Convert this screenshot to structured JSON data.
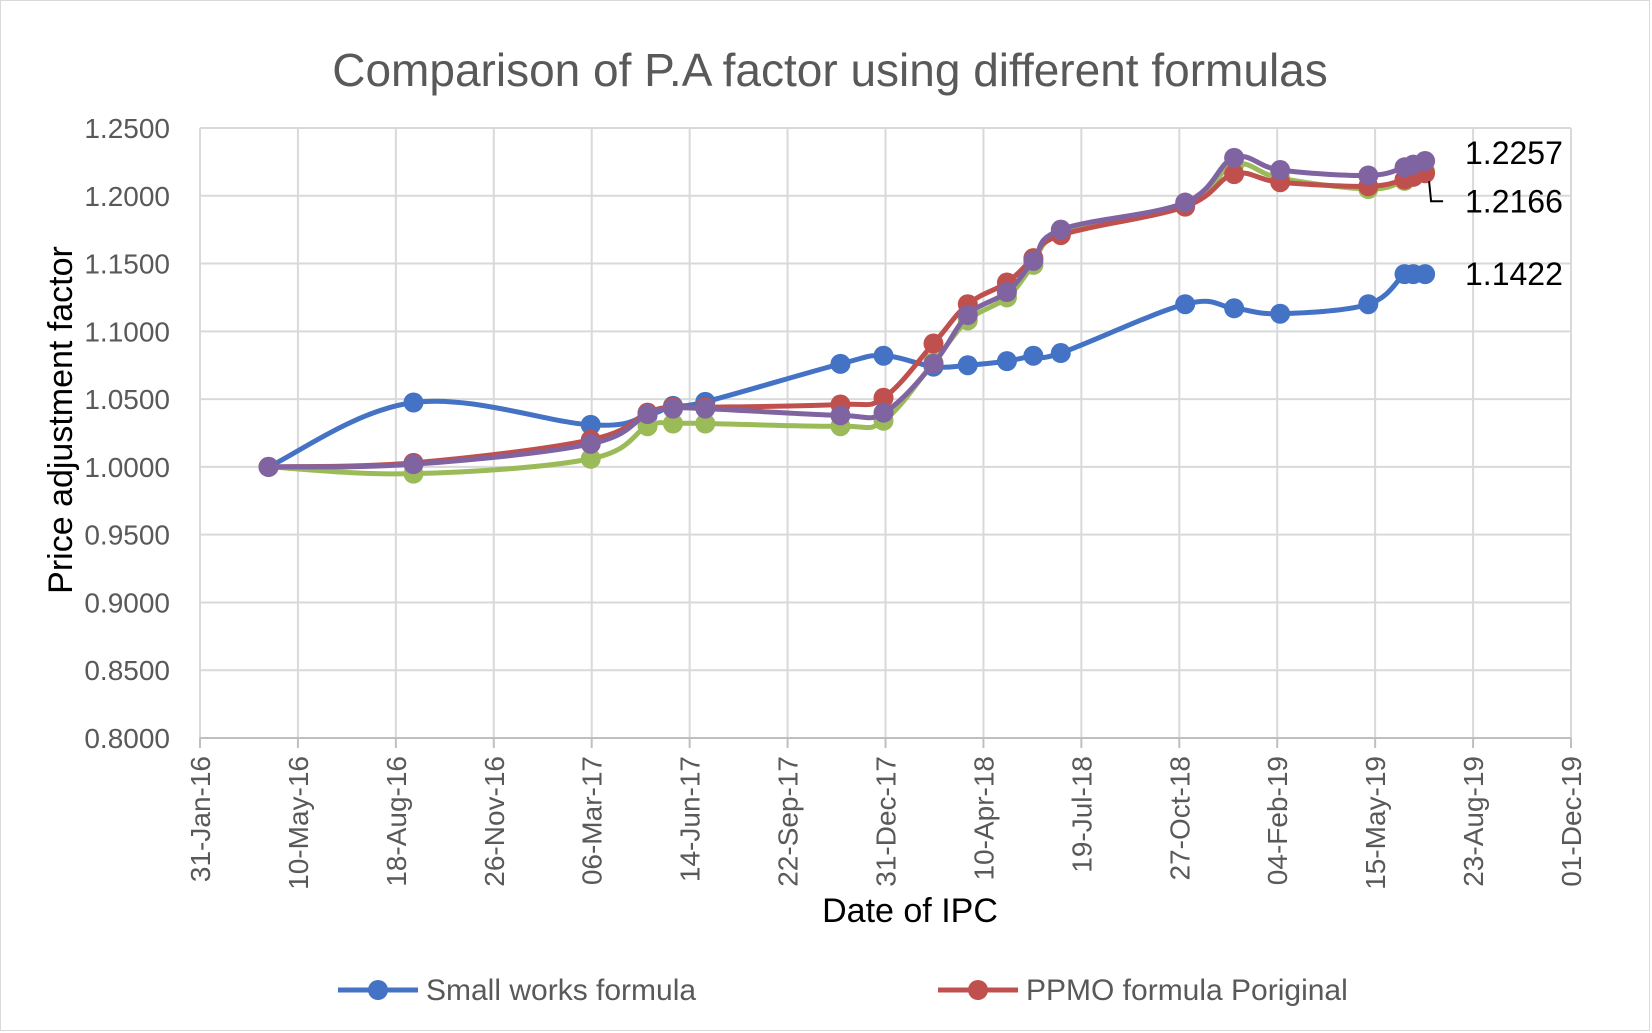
{
  "chart_data": {
    "type": "line",
    "title": "Comparison of P.A factor using different formulas",
    "xlabel": "Date of IPC",
    "ylabel": "Price adjustment factor",
    "ylim": [
      0.8,
      1.25
    ],
    "yticks": [
      "1.2500",
      "1.2000",
      "1.1500",
      "1.1000",
      "1.0500",
      "1.0000",
      "0.9500",
      "0.9000",
      "0.8500",
      "0.8000"
    ],
    "xlim": [
      "2016-01-31",
      "2019-12-01"
    ],
    "xticks": [
      "31-Jan-16",
      "10-May-16",
      "18-Aug-16",
      "26-Nov-16",
      "06-Mar-17",
      "14-Jun-17",
      "22-Sep-17",
      "31-Dec-17",
      "10-Apr-18",
      "19-Jul-18",
      "27-Oct-18",
      "04-Feb-19",
      "15-May-19",
      "23-Aug-19",
      "01-Dec-19"
    ],
    "grid": true,
    "legend_position": "bottom",
    "series": [
      {
        "name": "Small works formula",
        "color": "#4472c4",
        "points": [
          [
            "2016-04-10",
            1.0
          ],
          [
            "2016-09-05",
            1.0475
          ],
          [
            "2017-03-05",
            1.031
          ],
          [
            "2017-05-02",
            1.038
          ],
          [
            "2017-05-28",
            1.045
          ],
          [
            "2017-06-30",
            1.048
          ],
          [
            "2017-11-15",
            1.076
          ],
          [
            "2017-12-29",
            1.082
          ],
          [
            "2018-02-18",
            1.074
          ],
          [
            "2018-03-25",
            1.075
          ],
          [
            "2018-05-04",
            1.078
          ],
          [
            "2018-05-31",
            1.082
          ],
          [
            "2018-06-28",
            1.084
          ],
          [
            "2018-11-02",
            1.12
          ],
          [
            "2018-12-22",
            1.117
          ],
          [
            "2019-02-07",
            1.113
          ],
          [
            "2019-05-08",
            1.12
          ],
          [
            "2019-06-14",
            1.1422
          ],
          [
            "2019-06-23",
            1.1422
          ],
          [
            "2019-07-05",
            1.1422
          ]
        ],
        "end_label": "1.1422"
      },
      {
        "name": "PPMO formula Poriginal",
        "color": "#c0504d",
        "points": [
          [
            "2016-04-10",
            1.0
          ],
          [
            "2016-09-05",
            1.003
          ],
          [
            "2017-03-05",
            1.02
          ],
          [
            "2017-05-02",
            1.04
          ],
          [
            "2017-05-28",
            1.044
          ],
          [
            "2017-06-30",
            1.044
          ],
          [
            "2017-11-15",
            1.046
          ],
          [
            "2017-12-29",
            1.051
          ],
          [
            "2018-02-18",
            1.091
          ],
          [
            "2018-03-25",
            1.12
          ],
          [
            "2018-05-04",
            1.136
          ],
          [
            "2018-05-31",
            1.154
          ],
          [
            "2018-06-28",
            1.171
          ],
          [
            "2018-11-02",
            1.192
          ],
          [
            "2018-12-22",
            1.216
          ],
          [
            "2019-02-07",
            1.21
          ],
          [
            "2019-05-08",
            1.207
          ],
          [
            "2019-06-14",
            1.212
          ],
          [
            "2019-06-23",
            1.214
          ],
          [
            "2019-07-05",
            1.2166
          ]
        ],
        "end_label": "1.2166"
      },
      {
        "name": "",
        "color": "#9bbb59",
        "points": [
          [
            "2016-04-10",
            1.0
          ],
          [
            "2016-09-05",
            0.995
          ],
          [
            "2017-03-05",
            1.006
          ],
          [
            "2017-05-02",
            1.03
          ],
          [
            "2017-05-28",
            1.032
          ],
          [
            "2017-06-30",
            1.032
          ],
          [
            "2017-11-15",
            1.03
          ],
          [
            "2017-12-29",
            1.034
          ],
          [
            "2018-02-18",
            1.077
          ],
          [
            "2018-03-25",
            1.108
          ],
          [
            "2018-05-04",
            1.125
          ],
          [
            "2018-05-31",
            1.149
          ],
          [
            "2018-06-28",
            1.172
          ],
          [
            "2018-11-02",
            1.193
          ],
          [
            "2018-12-22",
            1.223
          ],
          [
            "2019-02-07",
            1.213
          ],
          [
            "2019-05-08",
            1.205
          ],
          [
            "2019-06-14",
            1.211
          ],
          [
            "2019-06-23",
            1.214
          ],
          [
            "2019-07-05",
            1.218
          ]
        ]
      },
      {
        "name": "",
        "color": "#8064a2",
        "points": [
          [
            "2016-04-10",
            1.0
          ],
          [
            "2016-09-05",
            1.002
          ],
          [
            "2017-03-05",
            1.017
          ],
          [
            "2017-05-02",
            1.039
          ],
          [
            "2017-05-28",
            1.043
          ],
          [
            "2017-06-30",
            1.043
          ],
          [
            "2017-11-15",
            1.038
          ],
          [
            "2017-12-29",
            1.04
          ],
          [
            "2018-02-18",
            1.076
          ],
          [
            "2018-03-25",
            1.112
          ],
          [
            "2018-05-04",
            1.129
          ],
          [
            "2018-05-31",
            1.152
          ],
          [
            "2018-06-28",
            1.175
          ],
          [
            "2018-11-02",
            1.195
          ],
          [
            "2018-12-22",
            1.228
          ],
          [
            "2019-02-07",
            1.219
          ],
          [
            "2019-05-08",
            1.215
          ],
          [
            "2019-06-14",
            1.221
          ],
          [
            "2019-06-23",
            1.223
          ],
          [
            "2019-07-05",
            1.2257
          ]
        ],
        "end_label": "1.2257"
      }
    ]
  }
}
